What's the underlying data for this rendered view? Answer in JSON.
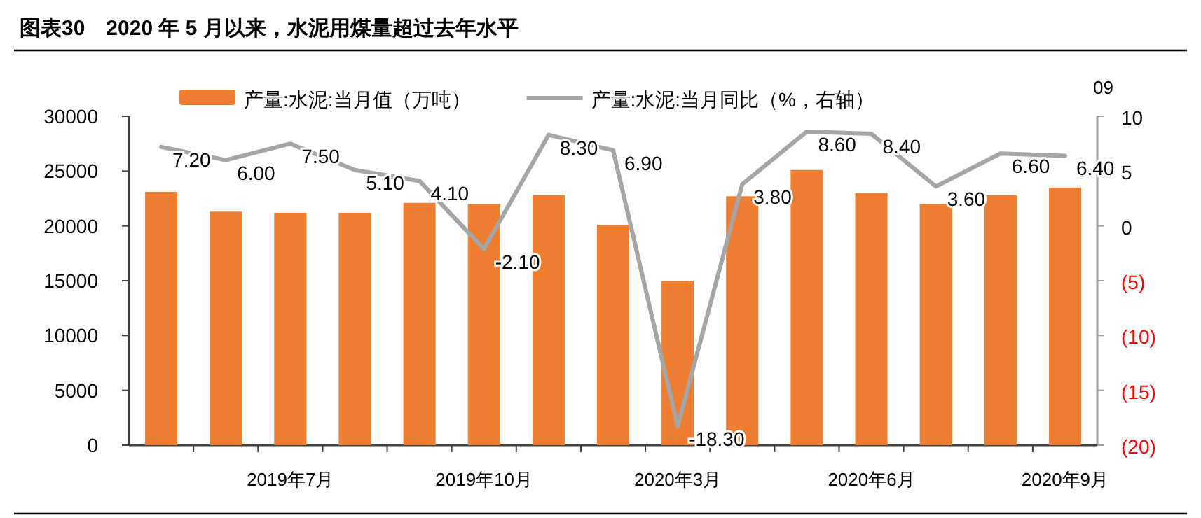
{
  "chart_data": {
    "type": "bar",
    "title": "图表30　2020 年 5 月以来，水泥用煤量超过去年水平",
    "categories": [
      null,
      null,
      "2019年7月",
      null,
      null,
      "2019年10月",
      null,
      null,
      "2020年3月",
      null,
      null,
      "2020年6月",
      null,
      null,
      "2020年9月"
    ],
    "series": [
      {
        "name": "产量:水泥:当月值（万吨）",
        "color": "#ed7d31",
        "values": [
          23100,
          21300,
          21200,
          21200,
          22100,
          22000,
          22800,
          20100,
          15000,
          22700,
          25100,
          23000,
          22000,
          22800,
          23500
        ]
      },
      {
        "name": "产量:水泥:当月同比（%，右轴）",
        "type": "line",
        "axis": "y2",
        "color": "#a5a5a5",
        "values": [
          7.2,
          6.0,
          7.5,
          5.1,
          4.1,
          -2.1,
          8.3,
          6.9,
          -18.3,
          3.8,
          8.6,
          8.4,
          3.6,
          6.6,
          6.4
        ],
        "value_labels": [
          "7.20",
          "6.00",
          "7.50",
          "5.10",
          "4.10",
          "-2.10",
          "8.30",
          "6.90",
          "-18.30",
          "3.80",
          "8.60",
          "8.40",
          "3.60",
          "6.60",
          "6.40"
        ]
      }
    ],
    "ylim": [
      0,
      30000
    ],
    "yticks": [
      0,
      5000,
      10000,
      15000,
      20000,
      25000,
      30000
    ],
    "y2lim": [
      -20,
      10
    ],
    "y2ticks": [
      10,
      5,
      0,
      {
        "value": -5,
        "label": "(5)"
      },
      {
        "value": -10,
        "label": "(10)"
      },
      {
        "value": -15,
        "label": "(15)"
      },
      {
        "value": -20,
        "label": "(20)"
      }
    ],
    "legend": "top",
    "grid": false,
    "marker": "none",
    "annotations": [
      "09"
    ]
  }
}
